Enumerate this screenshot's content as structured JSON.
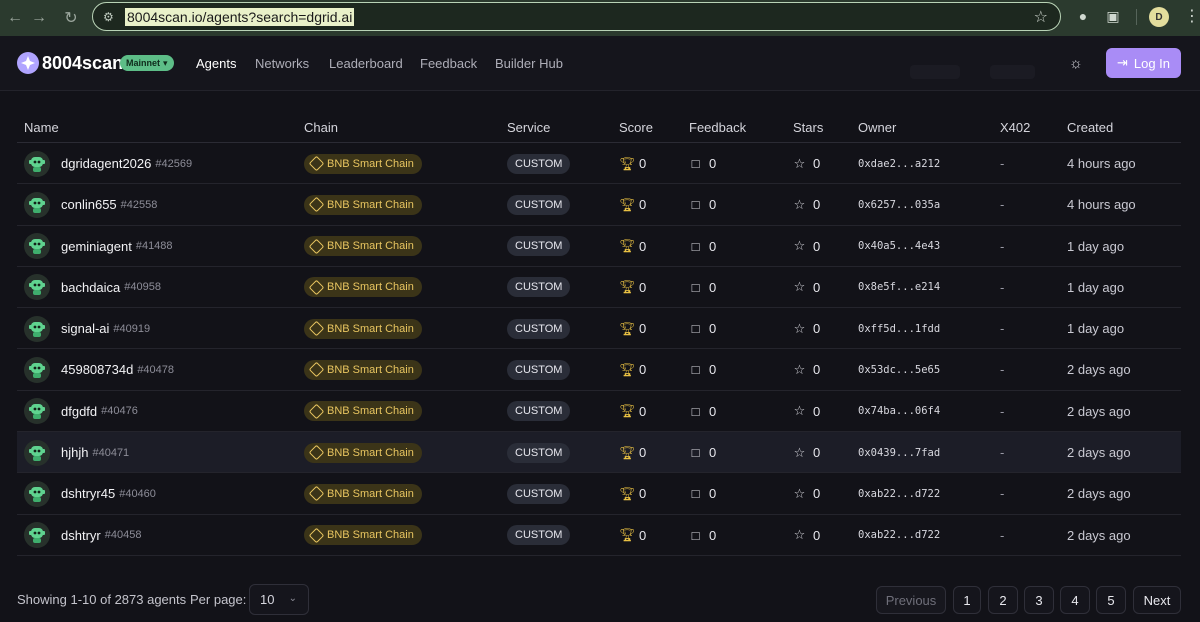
{
  "browser": {
    "url": "8004scan.io/agents?search=dgrid.ai",
    "profile_initial": "D"
  },
  "site": {
    "logo": "8004scan",
    "network_badge": "Mainnet",
    "nav": [
      "Agents",
      "Networks",
      "Leaderboard",
      "Feedback",
      "Builder Hub"
    ],
    "active_nav": "Agents",
    "login_label": "Log In"
  },
  "table": {
    "headers": {
      "name": "Name",
      "chain": "Chain",
      "service": "Service",
      "score": "Score",
      "feedback": "Feedback",
      "stars": "Stars",
      "owner": "Owner",
      "x402": "X402",
      "created": "Created"
    },
    "rows": [
      {
        "name": "dgridagent2026",
        "id": "#42569",
        "chain": "BNB Smart Chain",
        "service": "CUSTOM",
        "score": "0",
        "feedback": "0",
        "stars": "0",
        "owner": "0xdae2...a212",
        "x402": "-",
        "created": "4 hours ago"
      },
      {
        "name": "conlin655",
        "id": "#42558",
        "chain": "BNB Smart Chain",
        "service": "CUSTOM",
        "score": "0",
        "feedback": "0",
        "stars": "0",
        "owner": "0x6257...035a",
        "x402": "-",
        "created": "4 hours ago"
      },
      {
        "name": "geminiagent",
        "id": "#41488",
        "chain": "BNB Smart Chain",
        "service": "CUSTOM",
        "score": "0",
        "feedback": "0",
        "stars": "0",
        "owner": "0x40a5...4e43",
        "x402": "-",
        "created": "1 day ago"
      },
      {
        "name": "bachdaica",
        "id": "#40958",
        "chain": "BNB Smart Chain",
        "service": "CUSTOM",
        "score": "0",
        "feedback": "0",
        "stars": "0",
        "owner": "0x8e5f...e214",
        "x402": "-",
        "created": "1 day ago"
      },
      {
        "name": "signal-ai",
        "id": "#40919",
        "chain": "BNB Smart Chain",
        "service": "CUSTOM",
        "score": "0",
        "feedback": "0",
        "stars": "0",
        "owner": "0xff5d...1fdd",
        "x402": "-",
        "created": "1 day ago"
      },
      {
        "name": "459808734d",
        "id": "#40478",
        "chain": "BNB Smart Chain",
        "service": "CUSTOM",
        "score": "0",
        "feedback": "0",
        "stars": "0",
        "owner": "0x53dc...5e65",
        "x402": "-",
        "created": "2 days ago"
      },
      {
        "name": "dfgdfd",
        "id": "#40476",
        "chain": "BNB Smart Chain",
        "service": "CUSTOM",
        "score": "0",
        "feedback": "0",
        "stars": "0",
        "owner": "0x74ba...06f4",
        "x402": "-",
        "created": "2 days ago"
      },
      {
        "name": "hjhjh",
        "id": "#40471",
        "chain": "BNB Smart Chain",
        "service": "CUSTOM",
        "score": "0",
        "feedback": "0",
        "stars": "0",
        "owner": "0x0439...7fad",
        "x402": "-",
        "created": "2 days ago"
      },
      {
        "name": "dshtryr45",
        "id": "#40460",
        "chain": "BNB Smart Chain",
        "service": "CUSTOM",
        "score": "0",
        "feedback": "0",
        "stars": "0",
        "owner": "0xab22...d722",
        "x402": "-",
        "created": "2 days ago"
      },
      {
        "name": "dshtryr",
        "id": "#40458",
        "chain": "BNB Smart Chain",
        "service": "CUSTOM",
        "score": "0",
        "feedback": "0",
        "stars": "0",
        "owner": "0xab22...d722",
        "x402": "-",
        "created": "2 days ago"
      }
    ],
    "highlighted_row": 7
  },
  "footer": {
    "showing": "Showing 1-10 of 2873 agents",
    "per_page_label": "Per page:",
    "per_page_value": "10",
    "previous": "Previous",
    "pages": [
      "1",
      "2",
      "3",
      "4",
      "5"
    ],
    "next": "Next"
  },
  "colors": {
    "accent": "#a98cf6",
    "mainnet": "#5dbd87",
    "chain_badge_text": "#e8c560",
    "trophy": "#e8c043"
  },
  "icons": {
    "back": "arrow-left-icon",
    "forward": "arrow-right-icon",
    "reload": "reload-icon",
    "site_info": "tune-icon",
    "bookmark": "star-outline-icon",
    "theme": "sun-icon",
    "login": "login-arrow-icon",
    "score": "trophy-icon",
    "feedback": "chat-bubble-icon",
    "stars": "star-outline-icon"
  }
}
